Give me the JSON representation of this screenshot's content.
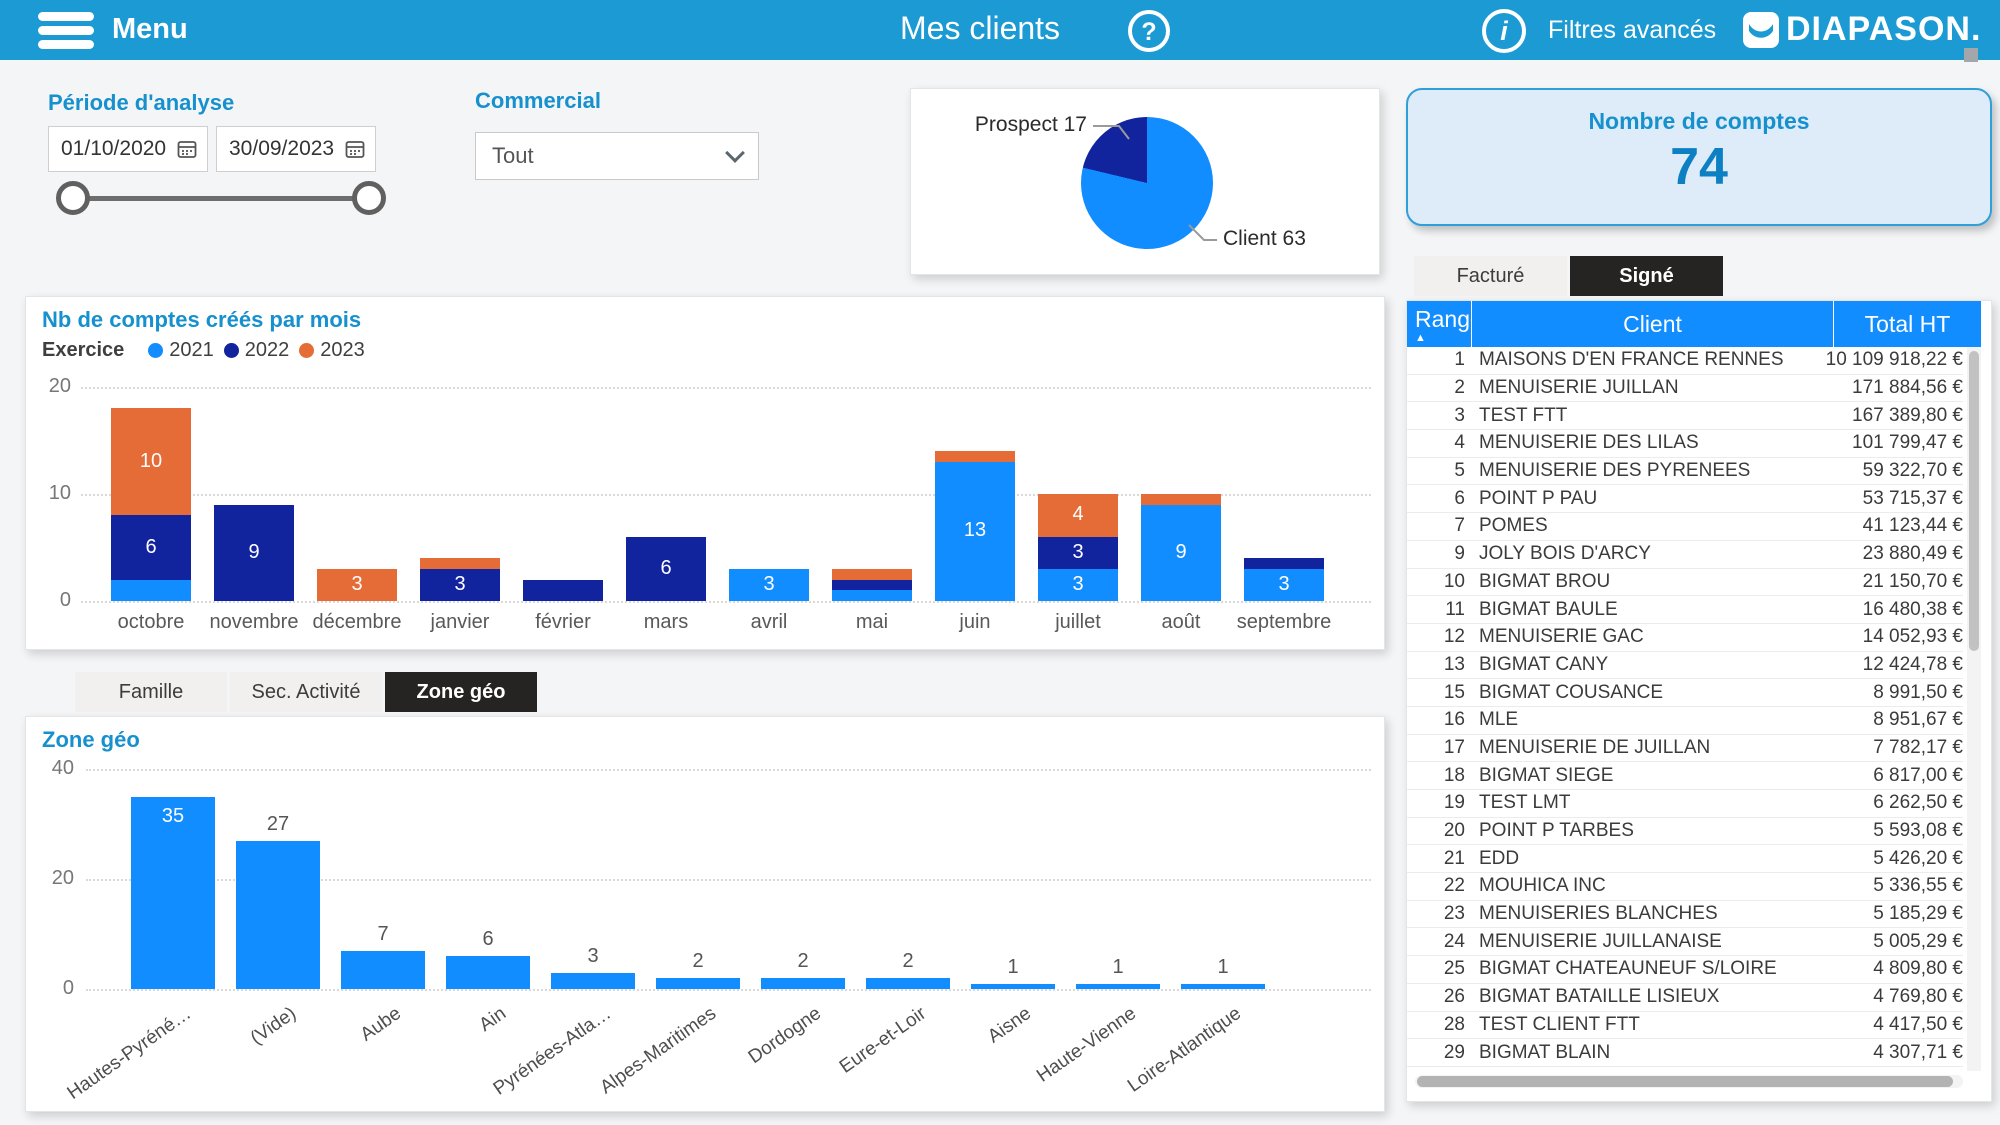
{
  "colors": {
    "header": "#1b9ad3",
    "accent_blue": "#1790ce",
    "series_2021": "#118dff",
    "series_2022": "#12239e",
    "series_2023": "#e66c37",
    "table_header": "#118dff",
    "selected_tab_bg": "#252423",
    "kpi_value": "#0d7fc3"
  },
  "header": {
    "menu_label": "Menu",
    "title": "Mes clients",
    "help_glyph": "?",
    "info_glyph": "i",
    "filters_label": "Filtres avancés",
    "brand": "DIAPASON",
    "brand_dot": "."
  },
  "filters": {
    "period_label": "Période d'analyse",
    "date_from": "01/10/2020",
    "date_to": "30/09/2023",
    "commercial_label": "Commercial",
    "commercial_value": "Tout"
  },
  "kpi": {
    "label": "Nombre de comptes",
    "value": "74"
  },
  "toggle": {
    "options": [
      "Facturé",
      "Signé"
    ],
    "selected": "Signé"
  },
  "tabs": {
    "options": [
      "Famille",
      "Sec. Activité",
      "Zone géo"
    ],
    "selected": "Zone géo"
  },
  "table": {
    "columns": [
      "Rang",
      "Client",
      "Total HT"
    ],
    "sort_icon": "▲",
    "rows": [
      [
        "1",
        "MAISONS D'EN FRANCE RENNES",
        "10 109 918,22 €"
      ],
      [
        "2",
        "MENUISERIE JUILLAN",
        "171 884,56 €"
      ],
      [
        "3",
        "TEST FTT",
        "167 389,80 €"
      ],
      [
        "4",
        "MENUISERIE DES LILAS",
        "101 799,47 €"
      ],
      [
        "5",
        "MENUISERIE DES PYRENEES",
        "59 322,70 €"
      ],
      [
        "6",
        "POINT P PAU",
        "53 715,37 €"
      ],
      [
        "7",
        "POMES",
        "41 123,44 €"
      ],
      [
        "9",
        "JOLY BOIS D'ARCY",
        "23 880,49 €"
      ],
      [
        "10",
        "BIGMAT BROU",
        "21 150,70 €"
      ],
      [
        "11",
        "BIGMAT BAULE",
        "16 480,38 €"
      ],
      [
        "12",
        "MENUISERIE GAC",
        "14 052,93 €"
      ],
      [
        "13",
        "BIGMAT CANY",
        "12 424,78 €"
      ],
      [
        "15",
        "BIGMAT COUSANCE",
        "8 991,50 €"
      ],
      [
        "16",
        "MLE",
        "8 951,67 €"
      ],
      [
        "17",
        "MENUISERIE DE JUILLAN",
        "7 782,17 €"
      ],
      [
        "18",
        "BIGMAT SIEGE",
        "6 817,00 €"
      ],
      [
        "19",
        "TEST LMT",
        "6 262,50 €"
      ],
      [
        "20",
        "POINT P TARBES",
        "5 593,08 €"
      ],
      [
        "21",
        "EDD",
        "5 426,20 €"
      ],
      [
        "22",
        "MOUHICA INC",
        "5 336,55 €"
      ],
      [
        "23",
        "MENUISERIES BLANCHES",
        "5 185,29 €"
      ],
      [
        "24",
        "MENUISERIE JUILLANAISE",
        "5 005,29 €"
      ],
      [
        "25",
        "BIGMAT CHATEAUNEUF S/LOIRE",
        "4 809,80 €"
      ],
      [
        "26",
        "BIGMAT BATAILLE LISIEUX",
        "4 769,80 €"
      ],
      [
        "28",
        "TEST CLIENT FTT",
        "4 417,50 €"
      ],
      [
        "29",
        "BIGMAT BLAIN",
        "4 307,71 €"
      ]
    ]
  },
  "chart_data": [
    {
      "type": "pie",
      "slices": [
        {
          "label": "Client",
          "value": 63,
          "color": "#118dff"
        },
        {
          "label": "Prospect",
          "value": 17,
          "color": "#12239e"
        }
      ],
      "start_angle_deg": 0,
      "direction": "clockwise"
    },
    {
      "type": "bar",
      "subtype": "stacked-column",
      "title": "Nb de comptes créés par mois",
      "legend_title": "Exercice",
      "categories": [
        "octobre",
        "novembre",
        "décembre",
        "janvier",
        "février",
        "mars",
        "avril",
        "mai",
        "juin",
        "juillet",
        "août",
        "septembre"
      ],
      "series": [
        {
          "name": "2021",
          "color": "#118dff",
          "values": [
            2,
            0,
            0,
            0,
            0,
            0,
            3,
            1,
            13,
            3,
            9,
            3
          ]
        },
        {
          "name": "2022",
          "color": "#12239e",
          "values": [
            6,
            9,
            0,
            3,
            2,
            6,
            0,
            1,
            0,
            3,
            0,
            1
          ]
        },
        {
          "name": "2023",
          "color": "#e66c37",
          "values": [
            10,
            0,
            3,
            1,
            0,
            0,
            0,
            1,
            1,
            4,
            1,
            0
          ]
        }
      ],
      "ylim": [
        0,
        20
      ],
      "yticks": [
        0,
        10,
        20
      ],
      "grid": "dotted",
      "label_min_value": 3
    },
    {
      "type": "bar",
      "subtype": "column",
      "title": "Zone géo",
      "categories": [
        "Hautes-Pyréné…",
        "(Vide)",
        "Aube",
        "Ain",
        "Pyrénées-Atla…",
        "Alpes-Maritimes",
        "Dordogne",
        "Eure-et-Loir",
        "Aisne",
        "Haute-Vienne",
        "Loire-Atlantique"
      ],
      "values": [
        35,
        27,
        7,
        6,
        3,
        2,
        2,
        2,
        1,
        1,
        1
      ],
      "color": "#118dff",
      "ylim": [
        0,
        40
      ],
      "yticks": [
        0,
        20,
        40
      ],
      "grid": "dotted"
    }
  ]
}
